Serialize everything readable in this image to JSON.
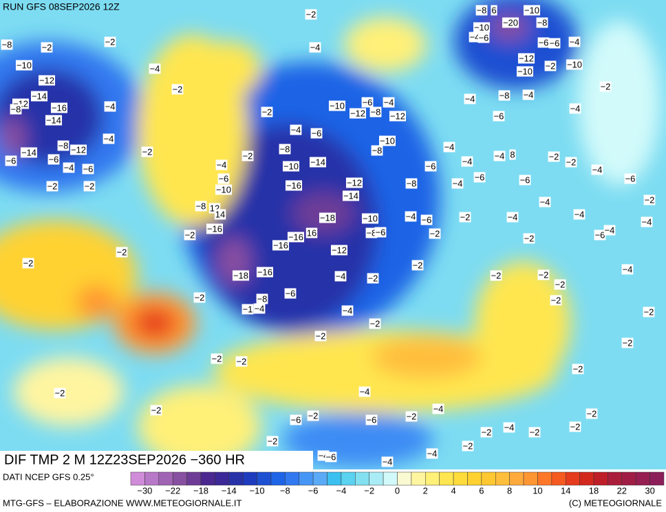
{
  "header": {
    "run": "RUN GFS 08SEP2026 12Z"
  },
  "map": {
    "title": "DIF TMP 2 M 12Z23SEP2026 −360 HR",
    "contour_labels": [
      "−2",
      "−8",
      "6",
      "−10",
      "−20",
      "−10",
      "−8",
      "−4",
      "−6",
      "−6",
      "−6",
      "−4",
      "−4",
      "−2",
      "−8",
      "−2",
      "−10",
      "−4",
      "−12",
      "−10",
      "−2",
      "−10",
      "−12",
      "−2",
      "−2",
      "−14",
      "−12",
      "−8",
      "−16",
      "−4",
      "−14",
      "−2",
      "−10",
      "−6",
      "−4",
      "−12",
      "−8",
      "−12",
      "−4",
      "−8",
      "−4",
      "−4",
      "−6",
      "−4",
      "−4",
      "−6",
      "−10",
      "−8",
      "−14",
      "−8",
      "−12",
      "−2",
      "−4",
      "−4",
      "8",
      "−2",
      "−2",
      "−6",
      "−6",
      "−4",
      "−6",
      "−2",
      "−8",
      "−10",
      "−14",
      "−4",
      "−6",
      "−4",
      "−4",
      "−2",
      "−2",
      "−6",
      "−10",
      "−16",
      "−12",
      "−8",
      "−4",
      "−6",
      "−6",
      "−6",
      "−14",
      "−8",
      "12",
      "14",
      "−16",
      "−18",
      "−10",
      "−4",
      "−6",
      "−2",
      "−4",
      "−4",
      "−4",
      "−2",
      "−4",
      "−2",
      "−2",
      "−16",
      "16",
      "−8",
      "−6",
      "−2",
      "−2",
      "−6",
      "−4",
      "−16",
      "−12",
      "−2",
      "−2",
      "−4",
      "−18",
      "−16",
      "−4",
      "−2",
      "−2",
      "−2",
      "−2",
      "−6",
      "−8",
      "−2",
      "−1",
      "−4",
      "−2",
      "−4",
      "−2",
      "−2",
      "−2",
      "−2",
      "−2",
      "−2",
      "−2",
      "−2",
      "−4",
      "−2",
      "−4",
      "−2",
      "−6",
      "−2",
      "−6",
      "−2",
      "−2",
      "−2",
      "−4",
      "−2",
      "−2",
      "−2",
      "−4",
      "−4",
      "−6",
      "−4"
    ]
  },
  "legend": {
    "source": "DATI NCEP GFS 0.25°",
    "colors": [
      "#d08cd8",
      "#b878c8",
      "#a064b4",
      "#8850a0",
      "#6e3c96",
      "#4a2890",
      "#3c2896",
      "#2832a8",
      "#1e3cbe",
      "#1e50d2",
      "#1e64e6",
      "#3278f0",
      "#4696f5",
      "#5aaaf8",
      "#3cc0f0",
      "#5ad2f0",
      "#82e0f0",
      "#aaecf5",
      "#d2fafa",
      "#fafad2",
      "#fff5a0",
      "#fff078",
      "#ffe650",
      "#ffdc3c",
      "#ffd232",
      "#ffc832",
      "#ffbe3c",
      "#ffaa3c",
      "#ff9632",
      "#ff7828",
      "#f55a1e",
      "#e63c1e",
      "#d2281e",
      "#be1e28",
      "#aa1e3c",
      "#a01e46",
      "#961e50",
      "#8c1e5a"
    ],
    "ticks": [
      {
        "value": -30,
        "label": "−30"
      },
      {
        "value": -22,
        "label": "−22"
      },
      {
        "value": -18,
        "label": "−18"
      },
      {
        "value": -14,
        "label": "−14"
      },
      {
        "value": -10,
        "label": "−10"
      },
      {
        "value": -8,
        "label": "−8"
      },
      {
        "value": -6,
        "label": "−6"
      },
      {
        "value": -4,
        "label": "−4"
      },
      {
        "value": -2,
        "label": "−2"
      },
      0,
      2,
      4,
      6,
      8,
      10,
      14,
      18,
      22,
      30
    ]
  },
  "footer": {
    "left": "MTG-GFS – ELABORAZIONE WWW.METEOGIORNALE.IT",
    "right": "(C) METEOGIORNALE"
  }
}
